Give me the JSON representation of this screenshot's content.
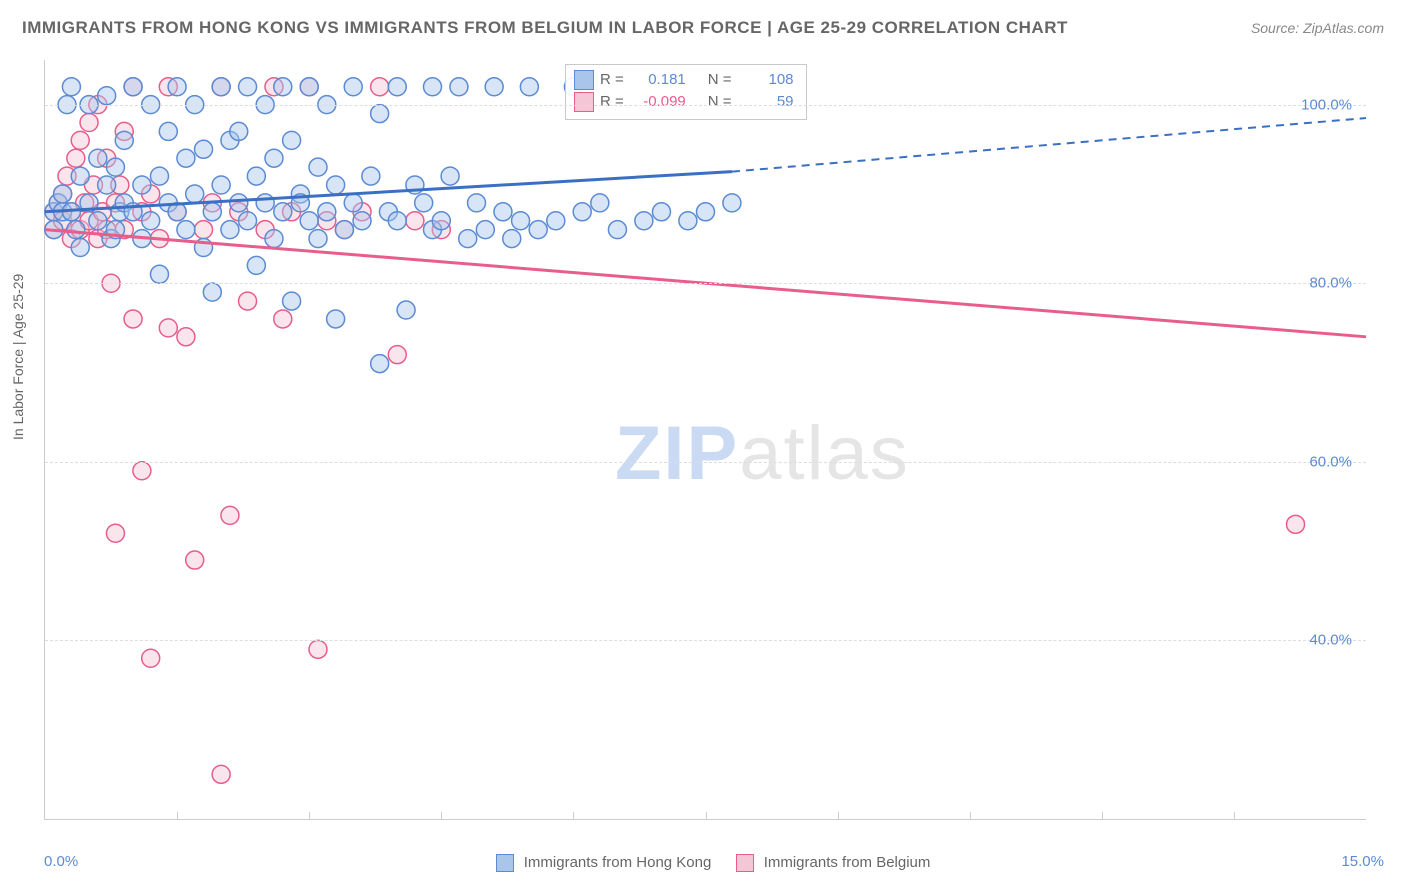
{
  "title": "IMMIGRANTS FROM HONG KONG VS IMMIGRANTS FROM BELGIUM IN LABOR FORCE | AGE 25-29 CORRELATION CHART",
  "source": "Source: ZipAtlas.com",
  "ylabel": "In Labor Force | Age 25-29",
  "watermark": {
    "zip": "ZIP",
    "atlas": "atlas"
  },
  "chart": {
    "type": "scatter",
    "xlim": [
      0.0,
      15.0
    ],
    "ylim": [
      20.0,
      105.0
    ],
    "x_tick_positions": [
      1.5,
      3.0,
      4.5,
      6.0,
      7.5,
      9.0,
      10.5,
      12.0,
      13.5
    ],
    "x_start_label": "0.0%",
    "x_end_label": "15.0%",
    "y_gridlines": [
      40.0,
      60.0,
      80.0,
      100.0
    ],
    "y_tick_labels": [
      "40.0%",
      "60.0%",
      "80.0%",
      "100.0%"
    ],
    "background_color": "#ffffff",
    "grid_color": "#dddddd",
    "axis_color": "#cccccc",
    "marker_radius": 9,
    "marker_opacity": 0.45,
    "series": [
      {
        "name": "Immigrants from Hong Kong",
        "color_fill": "#a9c5ea",
        "color_stroke": "#5b8bd4",
        "r_label": "R =",
        "r_value": "0.181",
        "n_label": "N =",
        "n_value": "108",
        "trend": {
          "x1": 0.0,
          "y1": 88.0,
          "x2_solid": 7.8,
          "y2_solid": 92.5,
          "x2_dash": 15.0,
          "y2_dash": 98.5,
          "stroke_width": 3,
          "color": "#3b6fc4"
        },
        "points": [
          [
            0.1,
            88
          ],
          [
            0.1,
            86
          ],
          [
            0.15,
            89
          ],
          [
            0.2,
            88
          ],
          [
            0.2,
            90
          ],
          [
            0.25,
            100
          ],
          [
            0.3,
            88
          ],
          [
            0.3,
            102
          ],
          [
            0.35,
            86
          ],
          [
            0.4,
            84
          ],
          [
            0.4,
            92
          ],
          [
            0.5,
            89
          ],
          [
            0.5,
            100
          ],
          [
            0.6,
            87
          ],
          [
            0.6,
            94
          ],
          [
            0.7,
            91
          ],
          [
            0.7,
            101
          ],
          [
            0.75,
            85
          ],
          [
            0.8,
            86
          ],
          [
            0.8,
            93
          ],
          [
            0.85,
            88
          ],
          [
            0.9,
            96
          ],
          [
            0.9,
            89
          ],
          [
            1.0,
            102
          ],
          [
            1.0,
            88
          ],
          [
            1.1,
            91
          ],
          [
            1.1,
            85
          ],
          [
            1.2,
            100
          ],
          [
            1.2,
            87
          ],
          [
            1.3,
            92
          ],
          [
            1.3,
            81
          ],
          [
            1.4,
            97
          ],
          [
            1.4,
            89
          ],
          [
            1.5,
            102
          ],
          [
            1.5,
            88
          ],
          [
            1.6,
            94
          ],
          [
            1.6,
            86
          ],
          [
            1.7,
            100
          ],
          [
            1.7,
            90
          ],
          [
            1.8,
            95
          ],
          [
            1.8,
            84
          ],
          [
            1.9,
            88
          ],
          [
            1.9,
            79
          ],
          [
            2.0,
            102
          ],
          [
            2.0,
            91
          ],
          [
            2.1,
            86
          ],
          [
            2.1,
            96
          ],
          [
            2.2,
            89
          ],
          [
            2.2,
            97
          ],
          [
            2.3,
            102
          ],
          [
            2.3,
            87
          ],
          [
            2.4,
            92
          ],
          [
            2.4,
            82
          ],
          [
            2.5,
            100
          ],
          [
            2.5,
            89
          ],
          [
            2.6,
            94
          ],
          [
            2.6,
            85
          ],
          [
            2.7,
            102
          ],
          [
            2.7,
            88
          ],
          [
            2.8,
            96
          ],
          [
            2.8,
            78
          ],
          [
            2.9,
            90
          ],
          [
            2.9,
            89
          ],
          [
            3.0,
            102
          ],
          [
            3.0,
            87
          ],
          [
            3.1,
            93
          ],
          [
            3.1,
            85
          ],
          [
            3.2,
            100
          ],
          [
            3.2,
            88
          ],
          [
            3.3,
            76
          ],
          [
            3.3,
            91
          ],
          [
            3.4,
            86
          ],
          [
            3.5,
            89
          ],
          [
            3.5,
            102
          ],
          [
            3.6,
            87
          ],
          [
            3.7,
            92
          ],
          [
            3.8,
            99
          ],
          [
            3.8,
            71
          ],
          [
            3.9,
            88
          ],
          [
            4.0,
            102
          ],
          [
            4.0,
            87
          ],
          [
            4.1,
            77
          ],
          [
            4.2,
            91
          ],
          [
            4.3,
            89
          ],
          [
            4.4,
            102
          ],
          [
            4.4,
            86
          ],
          [
            4.5,
            87
          ],
          [
            4.6,
            92
          ],
          [
            4.7,
            102
          ],
          [
            4.8,
            85
          ],
          [
            4.9,
            89
          ],
          [
            5.0,
            86
          ],
          [
            5.1,
            102
          ],
          [
            5.2,
            88
          ],
          [
            5.3,
            85
          ],
          [
            5.4,
            87
          ],
          [
            5.5,
            102
          ],
          [
            5.6,
            86
          ],
          [
            5.8,
            87
          ],
          [
            6.0,
            102
          ],
          [
            6.1,
            88
          ],
          [
            6.3,
            89
          ],
          [
            6.5,
            86
          ],
          [
            6.8,
            87
          ],
          [
            7.0,
            88
          ],
          [
            7.3,
            87
          ],
          [
            7.5,
            88
          ],
          [
            7.8,
            89
          ]
        ]
      },
      {
        "name": "Immigrants from Belgium",
        "color_fill": "#f5c6d6",
        "color_stroke": "#e85d8a",
        "r_label": "R =",
        "r_value": "-0.099",
        "n_label": "N =",
        "n_value": "59",
        "trend": {
          "x1": 0.0,
          "y1": 86.0,
          "x2_solid": 15.0,
          "y2_solid": 74.0,
          "x2_dash": 15.0,
          "y2_dash": 74.0,
          "stroke_width": 3,
          "color": "#e85d8a"
        },
        "points": [
          [
            0.1,
            88
          ],
          [
            0.1,
            86
          ],
          [
            0.15,
            89
          ],
          [
            0.2,
            90
          ],
          [
            0.2,
            87
          ],
          [
            0.25,
            92
          ],
          [
            0.3,
            85
          ],
          [
            0.3,
            88
          ],
          [
            0.35,
            94
          ],
          [
            0.4,
            86
          ],
          [
            0.4,
            96
          ],
          [
            0.45,
            89
          ],
          [
            0.5,
            98
          ],
          [
            0.5,
            87
          ],
          [
            0.55,
            91
          ],
          [
            0.6,
            85
          ],
          [
            0.6,
            100
          ],
          [
            0.65,
            88
          ],
          [
            0.7,
            94
          ],
          [
            0.7,
            86
          ],
          [
            0.75,
            80
          ],
          [
            0.8,
            52
          ],
          [
            0.8,
            89
          ],
          [
            0.85,
            91
          ],
          [
            0.9,
            97
          ],
          [
            0.9,
            86
          ],
          [
            1.0,
            76
          ],
          [
            1.0,
            102
          ],
          [
            1.1,
            88
          ],
          [
            1.1,
            59
          ],
          [
            1.2,
            38
          ],
          [
            1.2,
            90
          ],
          [
            1.3,
            85
          ],
          [
            1.4,
            75
          ],
          [
            1.4,
            102
          ],
          [
            1.5,
            88
          ],
          [
            1.6,
            74
          ],
          [
            1.7,
            49
          ],
          [
            1.8,
            86
          ],
          [
            1.9,
            89
          ],
          [
            2.0,
            25
          ],
          [
            2.0,
            102
          ],
          [
            2.1,
            54
          ],
          [
            2.2,
            88
          ],
          [
            2.3,
            78
          ],
          [
            2.5,
            86
          ],
          [
            2.6,
            102
          ],
          [
            2.7,
            76
          ],
          [
            2.8,
            88
          ],
          [
            3.0,
            102
          ],
          [
            3.1,
            39
          ],
          [
            3.2,
            87
          ],
          [
            3.4,
            86
          ],
          [
            3.6,
            88
          ],
          [
            3.8,
            102
          ],
          [
            4.0,
            72
          ],
          [
            4.2,
            87
          ],
          [
            4.5,
            86
          ],
          [
            14.2,
            53
          ]
        ]
      }
    ]
  }
}
